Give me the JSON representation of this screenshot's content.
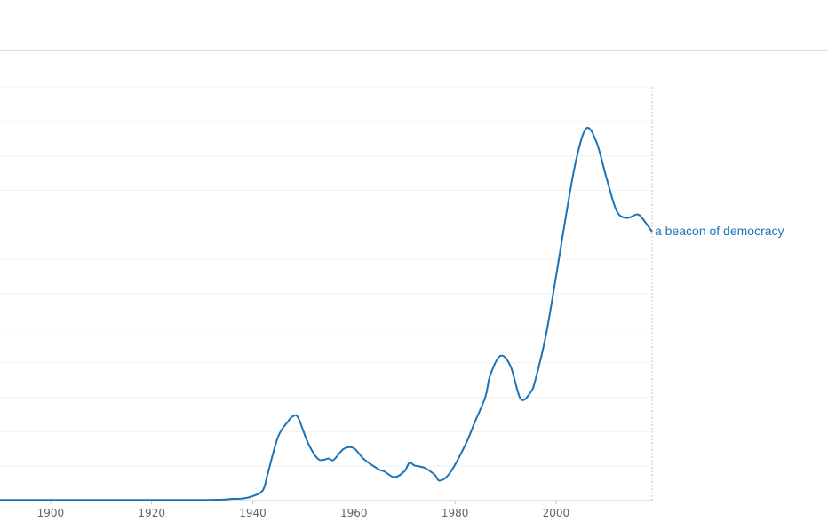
{
  "chart_data": {
    "type": "line",
    "title": "",
    "xlabel": "",
    "ylabel": "",
    "xlim": [
      1890,
      2019
    ],
    "ylim": [
      0,
      12
    ],
    "x_ticks": [
      1900,
      1920,
      1940,
      1960,
      1980,
      2000
    ],
    "y_gridlines": 12,
    "grid": true,
    "colors": {
      "series": "#1a73b8",
      "grid": "#f1f3f4",
      "axis": "#bdc1c6"
    },
    "series": [
      {
        "name": "a beacon of democracy",
        "points": [
          [
            1890,
            0.02
          ],
          [
            1900,
            0.02
          ],
          [
            1910,
            0.02
          ],
          [
            1920,
            0.02
          ],
          [
            1930,
            0.02
          ],
          [
            1934,
            0.03
          ],
          [
            1936,
            0.05
          ],
          [
            1938,
            0.06
          ],
          [
            1940,
            0.13
          ],
          [
            1942,
            0.3
          ],
          [
            1943,
            0.8
          ],
          [
            1945,
            1.85
          ],
          [
            1947,
            2.3
          ],
          [
            1948,
            2.45
          ],
          [
            1949,
            2.4
          ],
          [
            1951,
            1.65
          ],
          [
            1953,
            1.2
          ],
          [
            1955,
            1.22
          ],
          [
            1956,
            1.18
          ],
          [
            1958,
            1.5
          ],
          [
            1960,
            1.52
          ],
          [
            1962,
            1.2
          ],
          [
            1965,
            0.9
          ],
          [
            1966,
            0.85
          ],
          [
            1968,
            0.68
          ],
          [
            1970,
            0.85
          ],
          [
            1971,
            1.1
          ],
          [
            1972,
            1.02
          ],
          [
            1974,
            0.95
          ],
          [
            1976,
            0.75
          ],
          [
            1977,
            0.58
          ],
          [
            1979,
            0.8
          ],
          [
            1982,
            1.6
          ],
          [
            1984,
            2.3
          ],
          [
            1986,
            3.0
          ],
          [
            1987,
            3.65
          ],
          [
            1989,
            4.2
          ],
          [
            1991,
            3.9
          ],
          [
            1993,
            2.95
          ],
          [
            1995,
            3.15
          ],
          [
            1996,
            3.55
          ],
          [
            1998,
            4.8
          ],
          [
            2000,
            6.5
          ],
          [
            2002,
            8.3
          ],
          [
            2004,
            9.9
          ],
          [
            2006,
            10.8
          ],
          [
            2008,
            10.4
          ],
          [
            2010,
            9.35
          ],
          [
            2012,
            8.4
          ],
          [
            2014,
            8.2
          ],
          [
            2016,
            8.3
          ],
          [
            2017,
            8.2
          ],
          [
            2019,
            7.8
          ]
        ]
      }
    ]
  }
}
